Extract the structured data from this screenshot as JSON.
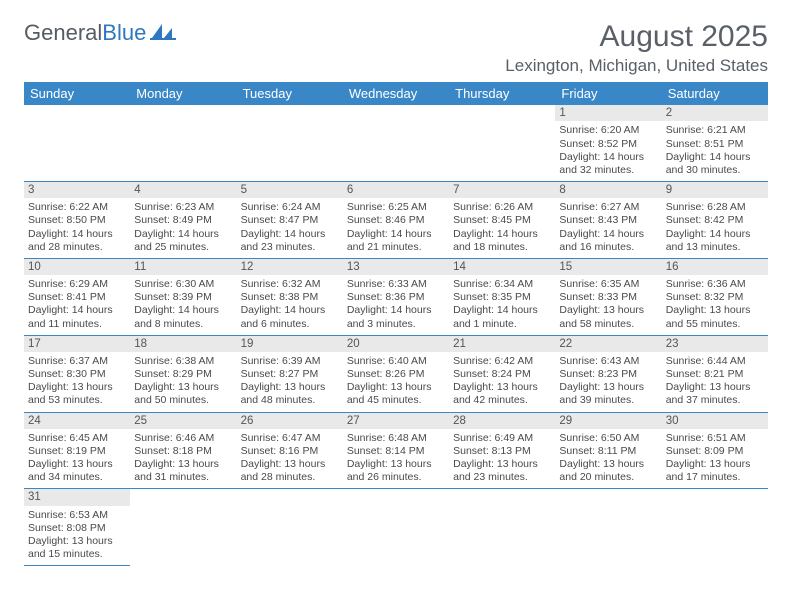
{
  "logo": {
    "text1": "General",
    "text2": "Blue"
  },
  "title": "August 2025",
  "subtitle": "Lexington, Michigan, United States",
  "colors": {
    "header_bg": "#3a87c8",
    "header_text": "#ffffff",
    "daynum_bg": "#e9e9e9",
    "border": "#3a87c8",
    "logo_gray": "#555c63",
    "logo_blue": "#2f78bf",
    "title_color": "#5a6067"
  },
  "weekdays": [
    "Sunday",
    "Monday",
    "Tuesday",
    "Wednesday",
    "Thursday",
    "Friday",
    "Saturday"
  ],
  "first_weekday_index": 5,
  "days": [
    {
      "n": 1,
      "sunrise": "6:20 AM",
      "sunset": "8:52 PM",
      "daylight": "14 hours and 32 minutes."
    },
    {
      "n": 2,
      "sunrise": "6:21 AM",
      "sunset": "8:51 PM",
      "daylight": "14 hours and 30 minutes."
    },
    {
      "n": 3,
      "sunrise": "6:22 AM",
      "sunset": "8:50 PM",
      "daylight": "14 hours and 28 minutes."
    },
    {
      "n": 4,
      "sunrise": "6:23 AM",
      "sunset": "8:49 PM",
      "daylight": "14 hours and 25 minutes."
    },
    {
      "n": 5,
      "sunrise": "6:24 AM",
      "sunset": "8:47 PM",
      "daylight": "14 hours and 23 minutes."
    },
    {
      "n": 6,
      "sunrise": "6:25 AM",
      "sunset": "8:46 PM",
      "daylight": "14 hours and 21 minutes."
    },
    {
      "n": 7,
      "sunrise": "6:26 AM",
      "sunset": "8:45 PM",
      "daylight": "14 hours and 18 minutes."
    },
    {
      "n": 8,
      "sunrise": "6:27 AM",
      "sunset": "8:43 PM",
      "daylight": "14 hours and 16 minutes."
    },
    {
      "n": 9,
      "sunrise": "6:28 AM",
      "sunset": "8:42 PM",
      "daylight": "14 hours and 13 minutes."
    },
    {
      "n": 10,
      "sunrise": "6:29 AM",
      "sunset": "8:41 PM",
      "daylight": "14 hours and 11 minutes."
    },
    {
      "n": 11,
      "sunrise": "6:30 AM",
      "sunset": "8:39 PM",
      "daylight": "14 hours and 8 minutes."
    },
    {
      "n": 12,
      "sunrise": "6:32 AM",
      "sunset": "8:38 PM",
      "daylight": "14 hours and 6 minutes."
    },
    {
      "n": 13,
      "sunrise": "6:33 AM",
      "sunset": "8:36 PM",
      "daylight": "14 hours and 3 minutes."
    },
    {
      "n": 14,
      "sunrise": "6:34 AM",
      "sunset": "8:35 PM",
      "daylight": "14 hours and 1 minute."
    },
    {
      "n": 15,
      "sunrise": "6:35 AM",
      "sunset": "8:33 PM",
      "daylight": "13 hours and 58 minutes."
    },
    {
      "n": 16,
      "sunrise": "6:36 AM",
      "sunset": "8:32 PM",
      "daylight": "13 hours and 55 minutes."
    },
    {
      "n": 17,
      "sunrise": "6:37 AM",
      "sunset": "8:30 PM",
      "daylight": "13 hours and 53 minutes."
    },
    {
      "n": 18,
      "sunrise": "6:38 AM",
      "sunset": "8:29 PM",
      "daylight": "13 hours and 50 minutes."
    },
    {
      "n": 19,
      "sunrise": "6:39 AM",
      "sunset": "8:27 PM",
      "daylight": "13 hours and 48 minutes."
    },
    {
      "n": 20,
      "sunrise": "6:40 AM",
      "sunset": "8:26 PM",
      "daylight": "13 hours and 45 minutes."
    },
    {
      "n": 21,
      "sunrise": "6:42 AM",
      "sunset": "8:24 PM",
      "daylight": "13 hours and 42 minutes."
    },
    {
      "n": 22,
      "sunrise": "6:43 AM",
      "sunset": "8:23 PM",
      "daylight": "13 hours and 39 minutes."
    },
    {
      "n": 23,
      "sunrise": "6:44 AM",
      "sunset": "8:21 PM",
      "daylight": "13 hours and 37 minutes."
    },
    {
      "n": 24,
      "sunrise": "6:45 AM",
      "sunset": "8:19 PM",
      "daylight": "13 hours and 34 minutes."
    },
    {
      "n": 25,
      "sunrise": "6:46 AM",
      "sunset": "8:18 PM",
      "daylight": "13 hours and 31 minutes."
    },
    {
      "n": 26,
      "sunrise": "6:47 AM",
      "sunset": "8:16 PM",
      "daylight": "13 hours and 28 minutes."
    },
    {
      "n": 27,
      "sunrise": "6:48 AM",
      "sunset": "8:14 PM",
      "daylight": "13 hours and 26 minutes."
    },
    {
      "n": 28,
      "sunrise": "6:49 AM",
      "sunset": "8:13 PM",
      "daylight": "13 hours and 23 minutes."
    },
    {
      "n": 29,
      "sunrise": "6:50 AM",
      "sunset": "8:11 PM",
      "daylight": "13 hours and 20 minutes."
    },
    {
      "n": 30,
      "sunrise": "6:51 AM",
      "sunset": "8:09 PM",
      "daylight": "13 hours and 17 minutes."
    },
    {
      "n": 31,
      "sunrise": "6:53 AM",
      "sunset": "8:08 PM",
      "daylight": "13 hours and 15 minutes."
    }
  ],
  "labels": {
    "sunrise": "Sunrise:",
    "sunset": "Sunset:",
    "daylight": "Daylight:"
  }
}
